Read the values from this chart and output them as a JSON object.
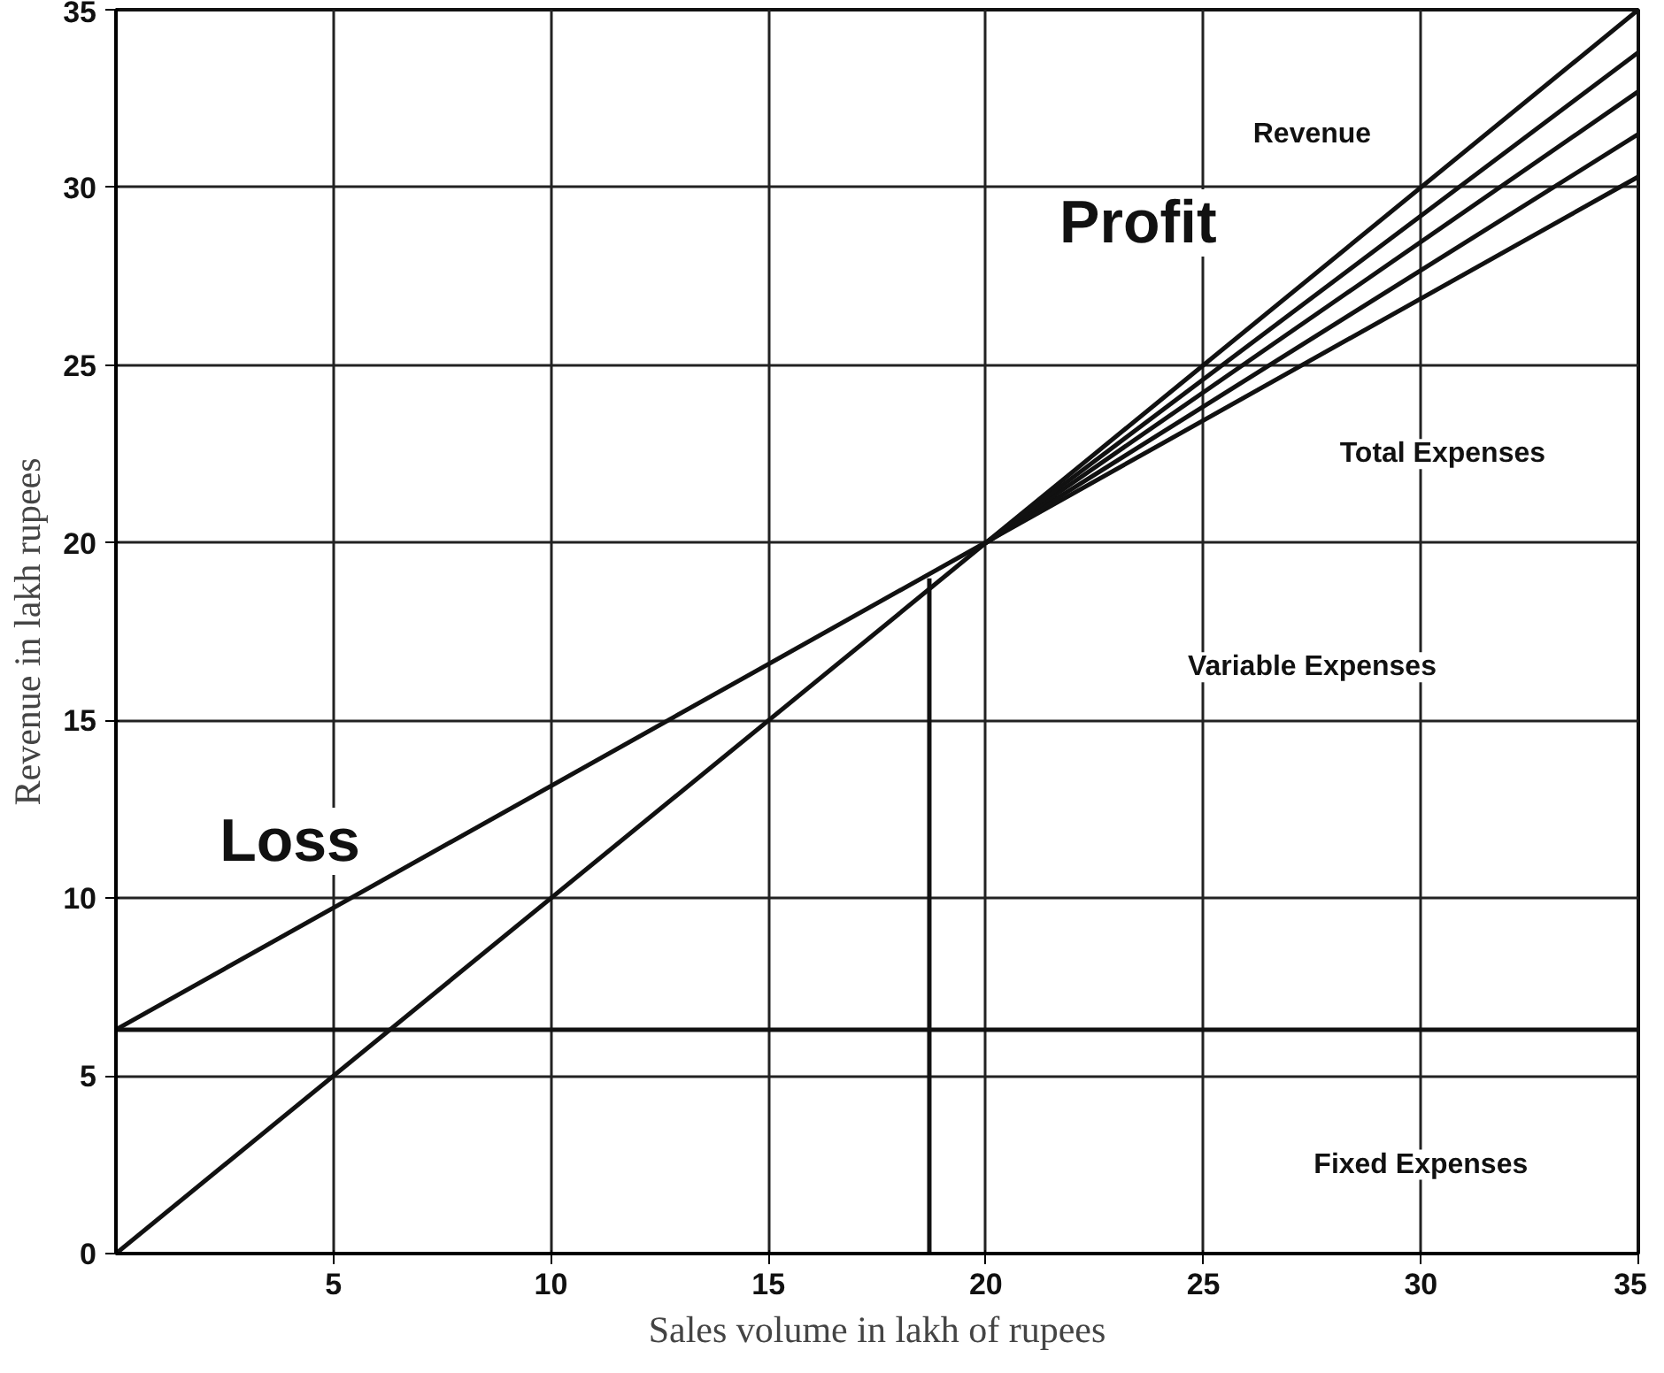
{
  "chart_data": {
    "type": "line",
    "xlabel": "Sales volume in lakh of rupees",
    "ylabel": "Revenue in lakh rupees",
    "xlim": [
      0,
      35
    ],
    "ylim": [
      0,
      35
    ],
    "xticks": [
      5,
      10,
      15,
      20,
      25,
      30,
      35
    ],
    "yticks": [
      0,
      5,
      10,
      15,
      20,
      25,
      30,
      35
    ],
    "grid": true,
    "marker": "none",
    "line_style": "solid",
    "series": [
      {
        "color": "#111111",
        "x": [
          0,
          35
        ],
        "values": [
          0,
          35
        ]
      },
      {
        "color": "#111111",
        "x": [
          0,
          35
        ],
        "values": [
          6.3,
          30.3
        ]
      },
      {
        "color": "#111111",
        "x": [
          0,
          35
        ],
        "values": [
          6.3,
          6.3
        ]
      },
      {
        "color": "#111111",
        "x": [
          20,
          35
        ],
        "values": [
          20,
          31.5
        ]
      },
      {
        "color": "#111111",
        "x": [
          20,
          35
        ],
        "values": [
          20,
          32.7
        ]
      },
      {
        "color": "#111111",
        "x": [
          20,
          35
        ],
        "values": [
          20,
          33.8
        ]
      },
      {
        "color": "#111111",
        "x": [
          18.7,
          18.7
        ],
        "values": [
          0,
          19
        ]
      }
    ],
    "annotations": [
      "Revenue",
      "Profit",
      "Total Expenses",
      "Variable Expenses",
      "Fixed Expenses",
      "Loss"
    ]
  }
}
